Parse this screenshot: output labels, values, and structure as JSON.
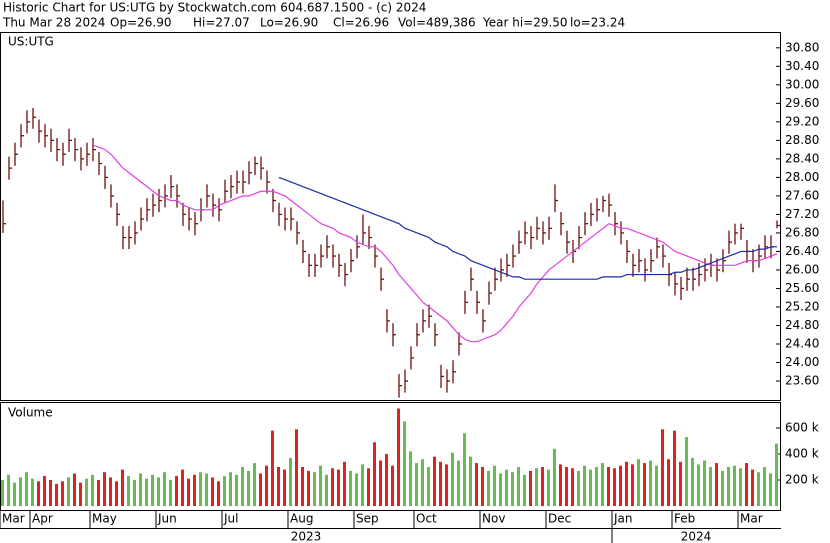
{
  "header": {
    "title": "Historic Chart for US:UTG by Stockwatch.com 604.687.1500 - (c) 2024",
    "stats": [
      "Thu Mar 28 2024",
      "Op=26.90",
      "Hi=27.07",
      "Lo=26.90",
      "Cl=26.96",
      "Vol=489,386",
      "Year hi=29.50",
      "lo=23.24"
    ]
  },
  "chart_data": [
    {
      "type": "ohlc",
      "label": "US:UTG",
      "color": "#6b1010",
      "categories": [
        "Mar",
        null,
        null,
        null,
        null,
        "Apr",
        null,
        null,
        null,
        null,
        null,
        null,
        null,
        null,
        null,
        "May",
        null,
        null,
        null,
        null,
        null,
        null,
        null,
        null,
        null,
        null,
        "Jun",
        null,
        null,
        null,
        null,
        null,
        null,
        null,
        null,
        null,
        null,
        "Jul",
        null,
        null,
        null,
        null,
        null,
        null,
        null,
        null,
        null,
        null,
        "Aug",
        null,
        null,
        null,
        null,
        null,
        null,
        null,
        null,
        null,
        null,
        "Sep",
        null,
        null,
        null,
        null,
        null,
        null,
        null,
        null,
        null,
        "Oct",
        null,
        null,
        null,
        null,
        null,
        null,
        null,
        null,
        null,
        null,
        "Nov",
        null,
        null,
        null,
        null,
        null,
        null,
        null,
        null,
        null,
        null,
        "Dec",
        null,
        null,
        null,
        null,
        null,
        null,
        null,
        null,
        null,
        null,
        "Jan",
        null,
        null,
        null,
        null,
        null,
        null,
        null,
        null,
        null,
        "Feb",
        null,
        null,
        null,
        null,
        null,
        null,
        null,
        null,
        null,
        null,
        "Mar",
        null,
        null,
        null,
        null,
        null,
        null
      ],
      "years": [
        "2023",
        null,
        null,
        null,
        null,
        null,
        null,
        null,
        null,
        null,
        null,
        null,
        null,
        null,
        null,
        null,
        null,
        null,
        null,
        null,
        null,
        null,
        null,
        null,
        null,
        null,
        null,
        null,
        null,
        null,
        null,
        null,
        null,
        null,
        null,
        null,
        null,
        null,
        null,
        null,
        null,
        null,
        null,
        null,
        null,
        null,
        null,
        null,
        null,
        null,
        null,
        null,
        null,
        null,
        null,
        null,
        null,
        null,
        null,
        null,
        null,
        null,
        null,
        null,
        null,
        null,
        null,
        null,
        null,
        null,
        null,
        null,
        null,
        null,
        null,
        null,
        null,
        null,
        null,
        null,
        null,
        null,
        null,
        null,
        null,
        null,
        null,
        null,
        null,
        null,
        null,
        null,
        null,
        null,
        null,
        null,
        null,
        null,
        null,
        null,
        null,
        null,
        "2024",
        null,
        null,
        null,
        null,
        null,
        null,
        null,
        null,
        null,
        null,
        null,
        null,
        null,
        null,
        null,
        null,
        null,
        null,
        null,
        null,
        null,
        null,
        null,
        null,
        null,
        null
      ],
      "high": [
        27.5,
        28.45,
        28.75,
        29.15,
        29.45,
        29.5,
        29.25,
        29.15,
        29.05,
        28.85,
        28.75,
        29.05,
        28.85,
        28.65,
        28.75,
        28.85,
        28.55,
        28.25,
        27.85,
        27.45,
        26.95,
        26.95,
        27.05,
        27.35,
        27.55,
        27.65,
        27.75,
        27.85,
        28.05,
        27.85,
        27.45,
        27.35,
        27.25,
        27.55,
        27.85,
        27.65,
        27.55,
        27.95,
        28.05,
        28.15,
        28.15,
        28.35,
        28.45,
        28.45,
        28.15,
        27.75,
        27.45,
        27.35,
        27.35,
        27.05,
        26.65,
        26.35,
        26.35,
        26.55,
        26.75,
        26.55,
        26.35,
        26.15,
        26.45,
        26.75,
        27.2,
        26.95,
        26.55,
        26.05,
        25.15,
        24.85,
        23.75,
        23.85,
        24.35,
        24.85,
        25.15,
        25.25,
        24.85,
        23.95,
        23.85,
        24.05,
        24.65,
        25.55,
        26.05,
        25.55,
        25.15,
        25.75,
        26.05,
        26.25,
        26.35,
        26.55,
        26.85,
        27.05,
        26.95,
        27.15,
        27.05,
        27.15,
        27.85,
        27.25,
        26.85,
        26.65,
        26.95,
        27.25,
        27.45,
        27.55,
        27.6,
        27.65,
        27.25,
        27.05,
        26.65,
        26.35,
        26.45,
        26.25,
        26.45,
        26.7,
        26.55,
        26.15,
        25.95,
        25.85,
        26.05,
        26.05,
        26.15,
        26.25,
        26.35,
        26.25,
        26.45,
        26.85,
        27.0,
        27.0,
        26.65,
        26.45,
        26.55,
        26.75,
        26.75,
        27.07
      ],
      "low": [
        26.8,
        27.95,
        28.25,
        28.65,
        28.95,
        29.05,
        28.75,
        28.65,
        28.55,
        28.35,
        28.25,
        28.55,
        28.35,
        28.15,
        28.25,
        28.35,
        28.05,
        27.75,
        27.35,
        26.95,
        26.45,
        26.45,
        26.55,
        26.85,
        27.05,
        27.15,
        27.25,
        27.35,
        27.55,
        27.35,
        26.95,
        26.85,
        26.75,
        27.05,
        27.35,
        27.15,
        27.05,
        27.45,
        27.55,
        27.65,
        27.65,
        27.85,
        28.05,
        27.95,
        27.65,
        27.25,
        26.95,
        26.85,
        26.85,
        26.55,
        26.15,
        25.85,
        25.85,
        26.05,
        26.25,
        26.05,
        25.85,
        25.65,
        25.95,
        26.25,
        26.55,
        26.45,
        26.05,
        25.55,
        24.65,
        24.35,
        23.24,
        23.35,
        23.85,
        24.35,
        24.65,
        24.75,
        24.35,
        23.45,
        23.35,
        23.55,
        24.15,
        25.05,
        25.55,
        25.05,
        24.65,
        25.25,
        25.55,
        25.75,
        25.85,
        26.05,
        26.35,
        26.55,
        26.45,
        26.65,
        26.55,
        26.65,
        27.25,
        26.75,
        26.35,
        26.15,
        26.45,
        26.75,
        26.95,
        27.05,
        27.25,
        27.15,
        26.75,
        26.55,
        26.15,
        25.85,
        25.95,
        25.75,
        25.95,
        26.25,
        26.05,
        25.65,
        25.45,
        25.35,
        25.55,
        25.55,
        25.65,
        25.75,
        25.85,
        25.75,
        25.95,
        26.35,
        26.55,
        26.65,
        26.15,
        25.95,
        26.05,
        26.25,
        26.25,
        26.9
      ],
      "close": [
        27.0,
        28.2,
        28.5,
        28.9,
        29.2,
        29.3,
        29.0,
        28.9,
        28.8,
        28.6,
        28.5,
        28.8,
        28.6,
        28.4,
        28.5,
        28.6,
        28.3,
        28.0,
        27.6,
        27.2,
        26.7,
        26.7,
        26.8,
        27.1,
        27.3,
        27.4,
        27.5,
        27.6,
        27.8,
        27.6,
        27.2,
        27.1,
        27.0,
        27.3,
        27.6,
        27.4,
        27.3,
        27.7,
        27.8,
        27.9,
        27.9,
        28.1,
        28.3,
        28.2,
        27.9,
        27.5,
        27.2,
        27.1,
        27.1,
        26.8,
        26.4,
        26.1,
        26.1,
        26.3,
        26.5,
        26.3,
        26.1,
        25.9,
        26.2,
        26.5,
        26.8,
        26.7,
        26.3,
        25.8,
        24.9,
        24.6,
        23.5,
        23.6,
        24.1,
        24.6,
        24.9,
        25.0,
        24.6,
        23.7,
        23.6,
        23.8,
        24.4,
        25.3,
        25.8,
        25.3,
        24.9,
        25.5,
        25.8,
        26.0,
        26.1,
        26.3,
        26.6,
        26.8,
        26.7,
        26.9,
        26.8,
        26.9,
        27.5,
        27.0,
        26.6,
        26.4,
        26.7,
        27.0,
        27.2,
        27.3,
        27.5,
        27.4,
        27.0,
        26.8,
        26.4,
        26.1,
        26.2,
        26.0,
        26.2,
        26.5,
        26.3,
        25.9,
        25.7,
        25.6,
        25.8,
        25.8,
        25.9,
        26.0,
        26.1,
        26.0,
        26.2,
        26.6,
        26.8,
        26.9,
        26.4,
        26.2,
        26.3,
        26.5,
        26.5,
        26.96
      ],
      "series": [
        {
          "color": "#e040e0",
          "values": [
            null,
            null,
            null,
            null,
            null,
            null,
            null,
            null,
            null,
            null,
            null,
            null,
            null,
            null,
            null,
            28.7,
            28.65,
            28.6,
            28.5,
            28.35,
            28.2,
            28.1,
            28.0,
            27.9,
            27.8,
            27.7,
            27.6,
            27.55,
            27.5,
            27.5,
            27.4,
            27.35,
            27.3,
            27.3,
            27.3,
            27.3,
            27.4,
            27.45,
            27.5,
            27.55,
            27.6,
            27.6,
            27.65,
            27.7,
            27.7,
            27.7,
            27.65,
            27.6,
            27.5,
            27.4,
            27.3,
            27.2,
            27.1,
            27.0,
            26.95,
            26.9,
            26.8,
            26.75,
            26.7,
            26.6,
            26.55,
            26.5,
            26.5,
            26.4,
            26.25,
            26.1,
            25.9,
            25.75,
            25.6,
            25.45,
            25.3,
            25.2,
            25.1,
            25.0,
            24.9,
            24.75,
            24.6,
            24.5,
            24.45,
            24.45,
            24.5,
            24.55,
            24.6,
            24.7,
            24.85,
            25.0,
            25.2,
            25.35,
            25.5,
            25.7,
            25.85,
            26.0,
            26.1,
            26.2,
            26.3,
            26.4,
            26.5,
            26.6,
            26.7,
            26.8,
            26.9,
            27.0,
            26.95,
            26.9,
            26.9,
            26.85,
            26.8,
            26.75,
            26.7,
            26.65,
            26.6,
            26.5,
            26.4,
            26.35,
            26.3,
            26.25,
            26.2,
            26.15,
            26.1,
            26.1,
            26.1,
            26.1,
            26.1,
            26.15,
            26.2,
            26.2,
            26.2,
            26.25,
            26.3,
            26.35
          ]
        },
        {
          "color": "#1a2ea0",
          "values": [
            null,
            null,
            null,
            null,
            null,
            null,
            null,
            null,
            null,
            null,
            null,
            null,
            null,
            null,
            null,
            null,
            null,
            null,
            null,
            null,
            null,
            null,
            null,
            null,
            null,
            null,
            null,
            null,
            null,
            null,
            null,
            null,
            null,
            null,
            null,
            null,
            null,
            null,
            null,
            null,
            null,
            null,
            null,
            null,
            null,
            null,
            28.0,
            27.95,
            27.9,
            27.85,
            27.8,
            27.75,
            27.7,
            27.65,
            27.6,
            27.55,
            27.5,
            27.45,
            27.4,
            27.35,
            27.3,
            27.25,
            27.2,
            27.15,
            27.1,
            27.05,
            27.0,
            26.9,
            26.85,
            26.8,
            26.75,
            26.7,
            26.6,
            26.55,
            26.5,
            26.4,
            26.35,
            26.3,
            26.2,
            26.15,
            26.1,
            26.05,
            26.0,
            25.95,
            25.9,
            25.85,
            25.85,
            25.8,
            25.8,
            25.8,
            25.8,
            25.8,
            25.8,
            25.8,
            25.8,
            25.8,
            25.8,
            25.8,
            25.8,
            25.8,
            25.85,
            25.85,
            25.85,
            25.85,
            25.9,
            25.9,
            25.9,
            25.9,
            25.9,
            25.9,
            25.9,
            25.9,
            25.95,
            25.95,
            26.0,
            26.0,
            26.05,
            26.1,
            26.15,
            26.2,
            26.25,
            26.3,
            26.35,
            26.4,
            26.4,
            26.4,
            26.45,
            26.45,
            26.5,
            26.5
          ]
        }
      ],
      "ylim": [
        23.19,
        31.12
      ],
      "yticks": [
        {
          "value": 23.6,
          "label": "23.60"
        },
        {
          "value": 24.0,
          "label": "24.00"
        },
        {
          "value": 24.4,
          "label": "24.40"
        },
        {
          "value": 24.8,
          "label": "24.80"
        },
        {
          "value": 25.2,
          "label": "25.20"
        },
        {
          "value": 25.6,
          "label": "25.60"
        },
        {
          "value": 26.0,
          "label": "26.00"
        },
        {
          "value": 26.4,
          "label": "26.40"
        },
        {
          "value": 26.8,
          "label": "26.80"
        },
        {
          "value": 27.2,
          "label": "27.20"
        },
        {
          "value": 27.6,
          "label": "27.60"
        },
        {
          "value": 28.0,
          "label": "28.00"
        },
        {
          "value": 28.4,
          "label": "28.40"
        },
        {
          "value": 28.8,
          "label": "28.80"
        },
        {
          "value": 29.2,
          "label": "29.20"
        },
        {
          "value": 29.6,
          "label": "29.60"
        },
        {
          "value": 30.0,
          "label": "30.00"
        },
        {
          "value": 30.4,
          "label": "30.40"
        },
        {
          "value": 30.8,
          "label": "30.80"
        }
      ]
    },
    {
      "type": "bar",
      "label": "Volume",
      "up_color": "#66bb55",
      "down_color": "#dd2222",
      "values": [
        200000,
        240000,
        180000,
        220000,
        260000,
        210000,
        190000,
        230000,
        200000,
        170000,
        190000,
        220000,
        250000,
        180000,
        210000,
        240000,
        200000,
        260000,
        220000,
        190000,
        280000,
        230000,
        200000,
        250000,
        210000,
        240000,
        220000,
        260000,
        200000,
        230000,
        280000,
        210000,
        240000,
        260000,
        250000,
        220000,
        190000,
        230000,
        260000,
        240000,
        300000,
        270000,
        330000,
        250000,
        310000,
        580000,
        300000,
        280000,
        370000,
        590000,
        300000,
        270000,
        260000,
        310000,
        240000,
        290000,
        280000,
        340000,
        270000,
        250000,
        320000,
        290000,
        490000,
        350000,
        400000,
        310000,
        750000,
        650000,
        420000,
        330000,
        360000,
        300000,
        380000,
        340000,
        320000,
        410000,
        350000,
        560000,
        380000,
        330000,
        300000,
        270000,
        310000,
        250000,
        280000,
        260000,
        300000,
        240000,
        270000,
        290000,
        300000,
        280000,
        440000,
        320000,
        300000,
        290000,
        270000,
        310000,
        280000,
        300000,
        330000,
        300000,
        290000,
        310000,
        340000,
        320000,
        360000,
        330000,
        350000,
        310000,
        590000,
        360000,
        580000,
        340000,
        530000,
        370000,
        320000,
        350000,
        300000,
        330000,
        270000,
        300000,
        310000,
        290000,
        330000,
        280000,
        260000,
        300000,
        250000,
        480000
      ],
      "ylim": [
        0,
        800000
      ],
      "yticks": [
        {
          "value": 200000,
          "label": "200 k"
        },
        {
          "value": 400000,
          "label": "400 k"
        },
        {
          "value": 600000,
          "label": "600 k"
        }
      ]
    }
  ]
}
